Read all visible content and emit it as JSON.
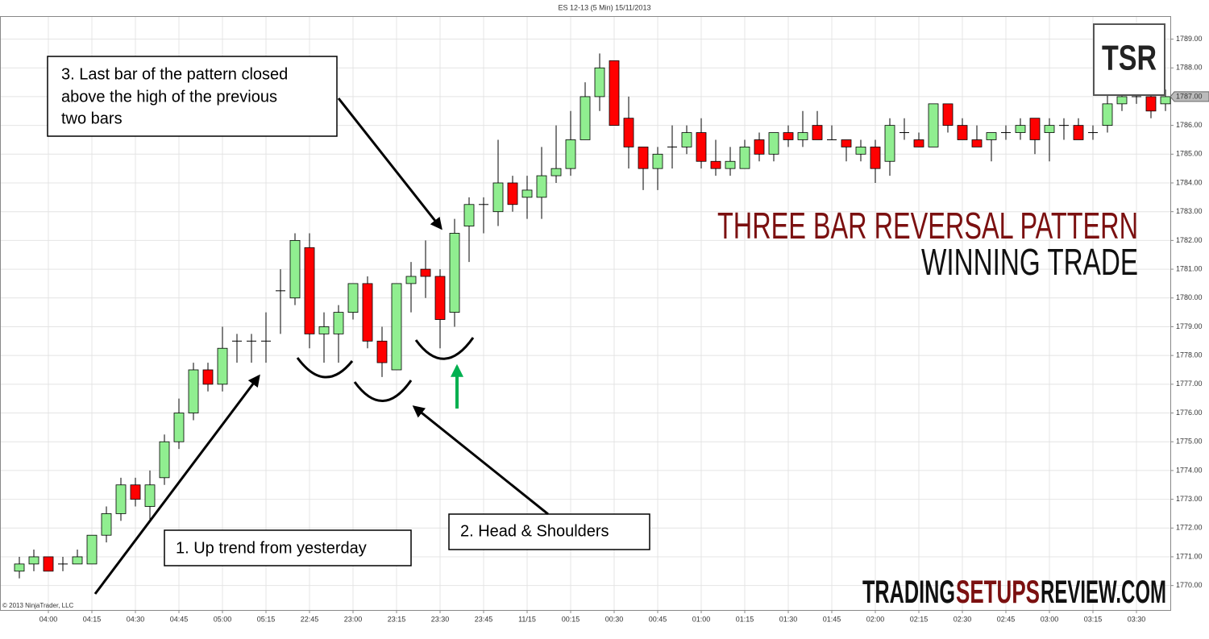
{
  "chart_data": {
    "type": "candlestick",
    "title": "ES 12-13 (5 Min)  15/11/2013",
    "copyright": "© 2013 NinjaTrader, LLC",
    "logo": "TSR",
    "headline": [
      "THREE BAR REVERSAL PATTERN",
      "WINNING TRADE"
    ],
    "site": [
      "TRADING",
      "SETUPS",
      "REVIEW.COM"
    ],
    "annotations": [
      {
        "lines": [
          "1. Up trend from yesterday"
        ]
      },
      {
        "lines": [
          "2. Head & Shoulders"
        ]
      },
      {
        "lines": [
          "3. Last bar of the pattern closed",
          "above the high of the previous",
          "two bars"
        ]
      }
    ],
    "up_color": "#90ee90",
    "down_color": "#ff0000",
    "categories": [
      null,
      null,
      "04:00",
      null,
      null,
      "04:15",
      null,
      null,
      "04:30",
      null,
      null,
      "04:45",
      null,
      null,
      "05:00",
      null,
      null,
      "05:15",
      null,
      null,
      "22:45",
      null,
      null,
      "23:00",
      null,
      null,
      "23:15",
      null,
      null,
      "23:30",
      null,
      null,
      "23:45",
      null,
      null,
      "11/15",
      null,
      null,
      "00:15",
      null,
      null,
      "00:30",
      null,
      null,
      "00:45",
      null,
      null,
      "01:00",
      null,
      null,
      "01:15",
      null,
      null,
      "01:30",
      null,
      null,
      "01:45",
      null,
      null,
      "02:00",
      null,
      null,
      "02:15",
      null,
      null,
      "02:30",
      null,
      null,
      "02:45",
      null,
      null,
      "03:00",
      null,
      null,
      "03:15",
      null,
      null,
      "03:30",
      null,
      null
    ],
    "open": [
      1770.5,
      1770.75,
      1771,
      1770.75,
      1770.75,
      1770.75,
      1771.75,
      1772.5,
      1773.5,
      1772.75,
      1773.75,
      1775,
      1776,
      1777.5,
      1777,
      1778.5,
      1778.5,
      1778.5,
      1780.25,
      1780,
      1781.75,
      1778.75,
      1778.75,
      1779.5,
      1780.5,
      1778.5,
      1777.5,
      1780.5,
      1781,
      1780.75,
      1779.5,
      1782.5,
      1783.25,
      1783,
      1784,
      1783.5,
      1783.5,
      1784.25,
      1784.5,
      1785.5,
      1787,
      1788.25,
      1786.25,
      1785.25,
      1784.5,
      1785.25,
      1785.25,
      1785.75,
      1784.75,
      1784.5,
      1784.5,
      1785.5,
      1785,
      1785.75,
      1785.5,
      1786,
      1785.5,
      1785.5,
      1785,
      1785.25,
      1784.75,
      1785.75,
      1785.5,
      1785.25,
      1786.75,
      1786,
      1785.5,
      1785.5,
      1785.75,
      1785.75,
      1786.25,
      1785.75,
      1786,
      1786,
      1785.75,
      1786,
      1786.75,
      1787,
      1787,
      1786.75
    ],
    "high": [
      1771,
      1771.25,
      1771,
      1771,
      1771.25,
      1771.75,
      1772.75,
      1773.75,
      1773.75,
      1774,
      1775.25,
      1776.5,
      1777.75,
      1777.75,
      1779,
      1778.75,
      1778.75,
      1779.5,
      1781,
      1782.25,
      1782.25,
      1779.5,
      1779.75,
      1780.5,
      1780.75,
      1779,
      1780.5,
      1781.25,
      1782,
      1781,
      1782.75,
      1783.5,
      1783.5,
      1785.5,
      1784.25,
      1784.25,
      1785.25,
      1786,
      1786.5,
      1787.5,
      1788.5,
      1788.25,
      1787,
      1785.25,
      1785.25,
      1786,
      1786,
      1786.25,
      1785.5,
      1785.25,
      1785.5,
      1785.75,
      1785.75,
      1786,
      1786.5,
      1786.5,
      1786,
      1785.5,
      1785.5,
      1785.5,
      1786.25,
      1786.25,
      1785.75,
      1786.75,
      1786.75,
      1786.25,
      1786,
      1785.75,
      1786,
      1786.25,
      1786.25,
      1786.25,
      1786.25,
      1786.25,
      1786,
      1787.25,
      1787.5,
      1787.5,
      1787.25,
      1787.25
    ],
    "low": [
      1770.25,
      1770.5,
      1770.5,
      1770.5,
      1770.75,
      1770.75,
      1771.5,
      1772.25,
      1772.75,
      1772.25,
      1773.5,
      1774.75,
      1775.75,
      1776.75,
      1776.75,
      1777.75,
      1777.75,
      1777.75,
      1778.75,
      1779.75,
      1778.25,
      1777.75,
      1777.75,
      1779.25,
      1778.25,
      1777.25,
      1777.5,
      1779.5,
      1780,
      1778.25,
      1779,
      1781.25,
      1782.25,
      1782.5,
      1783,
      1782.75,
      1782.75,
      1784,
      1784.25,
      1785.5,
      1786.5,
      1786,
      1784.5,
      1783.75,
      1783.75,
      1784.5,
      1785,
      1784.5,
      1784.25,
      1784.25,
      1784.5,
      1784.75,
      1784.75,
      1785.25,
      1785.25,
      1785.5,
      1785.5,
      1784.75,
      1784.75,
      1784,
      1784.25,
      1785.5,
      1785.25,
      1785.25,
      1785.75,
      1785.5,
      1785.25,
      1784.75,
      1785.5,
      1785.5,
      1785,
      1784.75,
      1785.5,
      1785.5,
      1785.5,
      1785.75,
      1786.5,
      1786.75,
      1786.25,
      1786.5
    ],
    "close": [
      1770.75,
      1771,
      1770.5,
      1770.75,
      1771,
      1771.75,
      1772.5,
      1773.5,
      1773,
      1773.5,
      1775,
      1776,
      1777.5,
      1777,
      1778.25,
      1778.5,
      1778.5,
      1778.5,
      1780.25,
      1782,
      1778.75,
      1779,
      1779.5,
      1780.5,
      1778.5,
      1777.75,
      1780.5,
      1780.75,
      1780.75,
      1779.25,
      1782.25,
      1783.25,
      1783.25,
      1784,
      1783.25,
      1783.75,
      1784.25,
      1784.5,
      1785.5,
      1787,
      1788,
      1786,
      1785.25,
      1784.5,
      1785,
      1785.25,
      1785.75,
      1784.75,
      1784.5,
      1784.75,
      1785.25,
      1785,
      1785.75,
      1785.5,
      1785.75,
      1785.5,
      1785.5,
      1785.25,
      1785.25,
      1784.5,
      1786,
      1785.75,
      1785.25,
      1786.75,
      1786,
      1785.5,
      1785.25,
      1785.75,
      1785.75,
      1786,
      1785.5,
      1786,
      1786,
      1785.5,
      1785.75,
      1786.75,
      1787,
      1787,
      1786.5,
      1787
    ],
    "last_price": {
      "value": 1787,
      "label": "1787.00"
    },
    "ylim": [
      1769.15,
      1789.8
    ],
    "yticks": [
      {
        "value": 1770,
        "label": "1770.00"
      },
      {
        "value": 1771,
        "label": "1771.00"
      },
      {
        "value": 1772,
        "label": "1772.00"
      },
      {
        "value": 1773,
        "label": "1773.00"
      },
      {
        "value": 1774,
        "label": "1774.00"
      },
      {
        "value": 1775,
        "label": "1775.00"
      },
      {
        "value": 1776,
        "label": "1776.00"
      },
      {
        "value": 1777,
        "label": "1777.00"
      },
      {
        "value": 1778,
        "label": "1778.00"
      },
      {
        "value": 1779,
        "label": "1779.00"
      },
      {
        "value": 1780,
        "label": "1780.00"
      },
      {
        "value": 1781,
        "label": "1781.00"
      },
      {
        "value": 1782,
        "label": "1782.00"
      },
      {
        "value": 1783,
        "label": "1783.00"
      },
      {
        "value": 1784,
        "label": "1784.00"
      },
      {
        "value": 1785,
        "label": "1785.00"
      },
      {
        "value": 1786,
        "label": "1786.00"
      },
      {
        "value": 1787,
        "label": "1787.00"
      },
      {
        "value": 1788,
        "label": "1788.00"
      },
      {
        "value": 1789,
        "label": "1789.00"
      }
    ],
    "grid": true
  }
}
